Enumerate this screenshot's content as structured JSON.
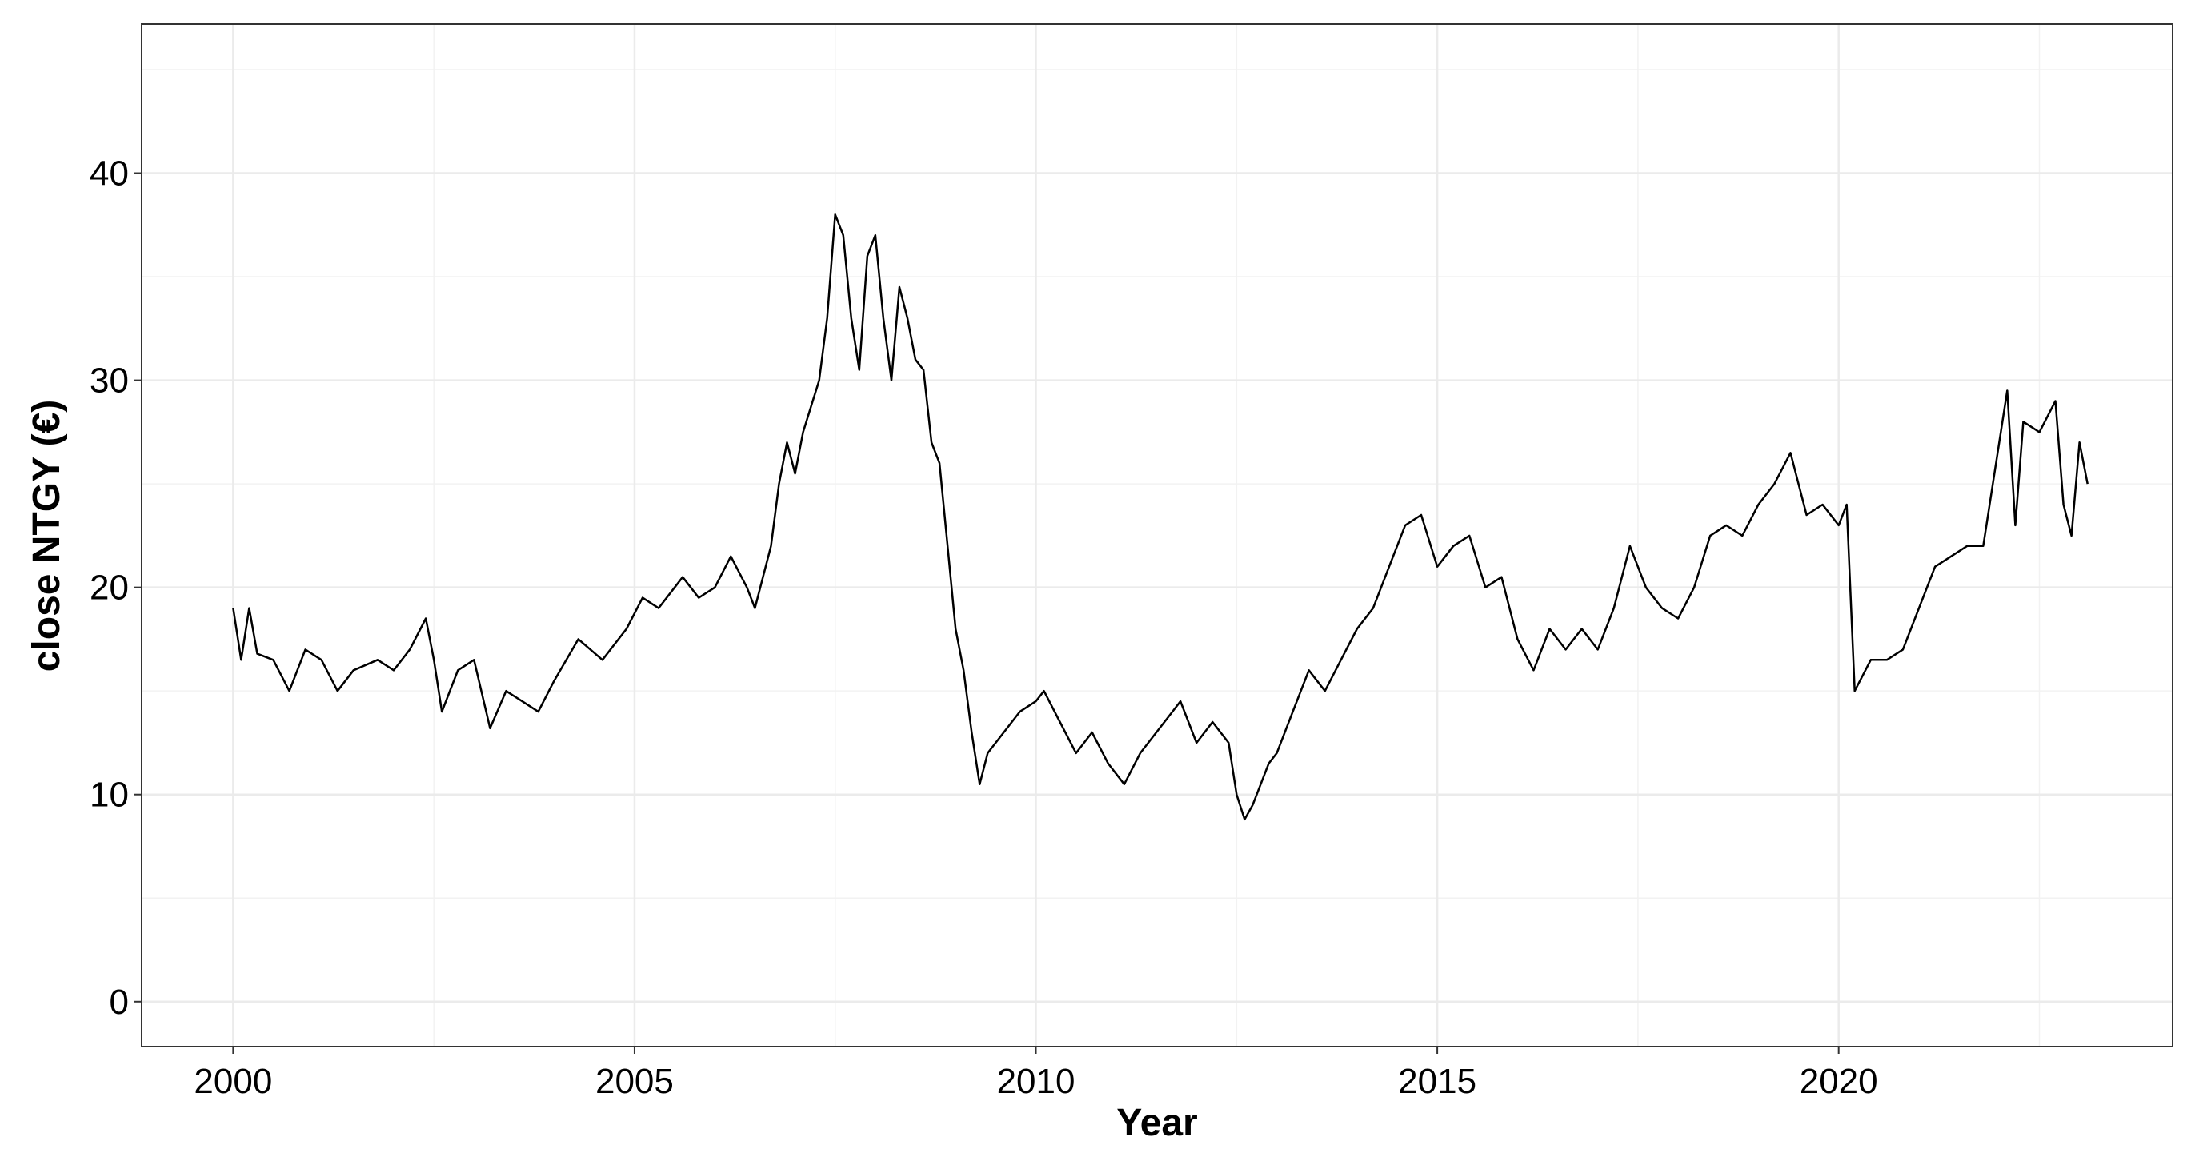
{
  "chart_data": {
    "type": "line",
    "xlabel": "Year",
    "ylabel": "close NTGY (€)",
    "x": [
      2000.0,
      2000.1,
      2000.2,
      2000.3,
      2000.5,
      2000.7,
      2000.9,
      2001.1,
      2001.3,
      2001.5,
      2001.8,
      2002.0,
      2002.2,
      2002.4,
      2002.5,
      2002.6,
      2002.8,
      2003.0,
      2003.2,
      2003.4,
      2003.6,
      2003.8,
      2004.0,
      2004.3,
      2004.6,
      2004.9,
      2005.1,
      2005.3,
      2005.6,
      2005.8,
      2006.0,
      2006.2,
      2006.4,
      2006.5,
      2006.7,
      2006.8,
      2006.9,
      2007.0,
      2007.1,
      2007.3,
      2007.4,
      2007.5,
      2007.6,
      2007.7,
      2007.8,
      2007.9,
      2008.0,
      2008.1,
      2008.2,
      2008.3,
      2008.4,
      2008.5,
      2008.6,
      2008.7,
      2008.8,
      2008.9,
      2009.0,
      2009.1,
      2009.2,
      2009.3,
      2009.4,
      2009.6,
      2009.8,
      2010.0,
      2010.1,
      2010.3,
      2010.5,
      2010.7,
      2010.9,
      2011.1,
      2011.3,
      2011.5,
      2011.7,
      2011.8,
      2012.0,
      2012.2,
      2012.4,
      2012.5,
      2012.6,
      2012.7,
      2012.9,
      2013.0,
      2013.2,
      2013.4,
      2013.6,
      2013.8,
      2014.0,
      2014.2,
      2014.4,
      2014.6,
      2014.8,
      2015.0,
      2015.2,
      2015.4,
      2015.6,
      2015.8,
      2016.0,
      2016.2,
      2016.4,
      2016.6,
      2016.8,
      2017.0,
      2017.2,
      2017.4,
      2017.6,
      2017.8,
      2018.0,
      2018.2,
      2018.4,
      2018.6,
      2018.8,
      2019.0,
      2019.2,
      2019.4,
      2019.6,
      2019.8,
      2020.0,
      2020.1,
      2020.2,
      2020.4,
      2020.6,
      2020.8,
      2021.0,
      2021.2,
      2021.4,
      2021.6,
      2021.8,
      2022.0,
      2022.1,
      2022.2,
      2022.3,
      2022.5,
      2022.7,
      2022.8,
      2022.9,
      2023.0,
      2023.1
    ],
    "series": [
      {
        "color": "#000000",
        "values": [
          19,
          16.5,
          19,
          16.8,
          16.5,
          15,
          17,
          16.5,
          15,
          16,
          16.5,
          16,
          17,
          18.5,
          16.5,
          14,
          16,
          16.5,
          13.2,
          15,
          14.5,
          14,
          15.5,
          17.5,
          16.5,
          18,
          19.5,
          19,
          20.5,
          19.5,
          20,
          21.5,
          20,
          19,
          22,
          25,
          27,
          25.5,
          27.5,
          30,
          33,
          38,
          37,
          33,
          30.5,
          36,
          37,
          33,
          30,
          34.5,
          33,
          31,
          30.5,
          27,
          26,
          22,
          18,
          16,
          13,
          10.5,
          12,
          13,
          14,
          14.5,
          15,
          13.5,
          12,
          13,
          11.5,
          10.5,
          12,
          13,
          14,
          14.5,
          12.5,
          13.5,
          12.5,
          10,
          8.8,
          9.5,
          11.5,
          12,
          14,
          16,
          15,
          16.5,
          18,
          19,
          21,
          23,
          23.5,
          21,
          22,
          22.5,
          20,
          20.5,
          17.5,
          16,
          18,
          17,
          18,
          17,
          19,
          22,
          20,
          19,
          18.5,
          20,
          22.5,
          23,
          22.5,
          24,
          25,
          26.5,
          23.5,
          24,
          23,
          24,
          15,
          16.5,
          16.5,
          17,
          19,
          21,
          21.5,
          22,
          22,
          27,
          29.5,
          23,
          28,
          27.5,
          29,
          24,
          22.5,
          27,
          25
        ]
      }
    ],
    "xlim": [
      1998.86,
      2024.16
    ],
    "xticks": [
      2000,
      2005,
      2010,
      2015,
      2020
    ],
    "ylim": [
      -2.17,
      47.2
    ],
    "yticks": [
      0,
      10,
      20,
      30,
      40
    ],
    "grid": true
  }
}
